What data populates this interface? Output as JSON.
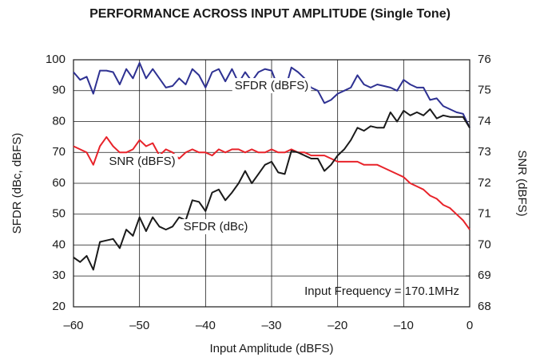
{
  "chart_data": {
    "type": "line",
    "title": "PERFORMANCE ACROSS INPUT AMPLITUDE (Single Tone)",
    "xlabel": "Input Amplitude (dBFS)",
    "ylabel": "SFDR (dBc, dBFS)",
    "y2label": "SNR (dBFS)",
    "annotations": [
      "SFDR (dBFS)",
      "SNR (dBFS)",
      "SFDR (dBc)",
      "Input Frequency = 170.1MHz"
    ],
    "grid": true,
    "xlim": [
      -60,
      0
    ],
    "xticks": [
      {
        "value": -60,
        "label": "–60"
      },
      {
        "value": -50,
        "label": "–50"
      },
      {
        "value": -40,
        "label": "–40"
      },
      {
        "value": -30,
        "label": "–30"
      },
      {
        "value": -20,
        "label": "–20"
      },
      {
        "value": -10,
        "label": "–10"
      },
      0
    ],
    "ylim": [
      20,
      100
    ],
    "yticks": [
      20,
      30,
      40,
      50,
      60,
      70,
      80,
      90,
      100
    ],
    "y2lim": [
      68,
      76
    ],
    "y2ticks": [
      68,
      69,
      70,
      71,
      72,
      73,
      74,
      75,
      76
    ],
    "x": [
      -60,
      -59,
      -58,
      -57,
      -56,
      -55,
      -54,
      -53,
      -52,
      -51,
      -50,
      -49,
      -48,
      -47,
      -46,
      -45,
      -44,
      -43,
      -42,
      -41,
      -40,
      -39,
      -38,
      -37,
      -36,
      -35,
      -34,
      -33,
      -32,
      -31,
      -30,
      -29,
      -28,
      -27,
      -26,
      -25,
      -24,
      -23,
      -22,
      -21,
      -20,
      -19,
      -18,
      -17,
      -16,
      -15,
      -14,
      -13,
      -12,
      -11,
      -10,
      -9,
      -8,
      -7,
      -6,
      -5,
      -4,
      -3,
      -2,
      -1,
      0
    ],
    "series": [
      {
        "color": "#2e3192",
        "values": [
          96,
          93.5,
          94.5,
          89,
          96.5,
          96.5,
          96,
          92,
          97,
          94,
          99,
          94,
          97,
          94,
          91,
          91.5,
          94,
          92,
          97,
          95,
          91,
          96,
          97,
          93,
          97,
          92.5,
          96,
          93,
          96,
          97,
          96.5,
          91,
          90,
          97.5,
          96,
          94,
          91,
          90,
          86,
          87,
          89,
          90,
          91,
          95,
          92,
          91,
          92,
          91.5,
          91,
          90,
          93.5,
          92,
          91,
          91,
          87,
          87.5,
          85,
          84,
          83,
          82.5,
          78
        ]
      },
      {
        "color": "#e8232a",
        "axis": "y2",
        "values": [
          73.2,
          73.1,
          73.0,
          72.6,
          73.2,
          73.5,
          73.2,
          73.0,
          73.0,
          73.1,
          73.4,
          73.2,
          73.3,
          72.9,
          73.1,
          73.0,
          72.8,
          73.0,
          73.1,
          73.0,
          73.0,
          72.9,
          73.1,
          73.0,
          73.1,
          73.1,
          73.0,
          73.1,
          73.0,
          73.0,
          73.1,
          73.0,
          73.0,
          73.1,
          73.0,
          73.0,
          72.9,
          72.9,
          72.9,
          72.8,
          72.7,
          72.7,
          72.7,
          72.7,
          72.6,
          72.6,
          72.6,
          72.5,
          72.4,
          72.3,
          72.2,
          72.0,
          71.9,
          71.8,
          71.6,
          71.5,
          71.3,
          71.2,
          71.0,
          70.8,
          70.5
        ]
      },
      {
        "color": "#1a1a1a",
        "values": [
          36,
          34.5,
          36.5,
          32,
          41,
          41.5,
          42,
          39,
          45,
          43,
          49,
          44.5,
          49,
          46,
          45,
          46,
          49,
          48,
          54.5,
          54,
          51,
          57,
          58,
          54.5,
          57,
          60,
          64,
          60,
          63,
          66,
          67,
          63.5,
          63,
          70.5,
          70,
          69,
          68,
          68,
          64,
          66,
          69,
          71,
          74,
          78,
          77,
          78.5,
          78,
          78,
          83,
          80,
          83.5,
          82,
          83,
          82,
          84,
          81,
          82,
          81.5,
          81.5,
          81.5,
          78
        ]
      }
    ]
  }
}
